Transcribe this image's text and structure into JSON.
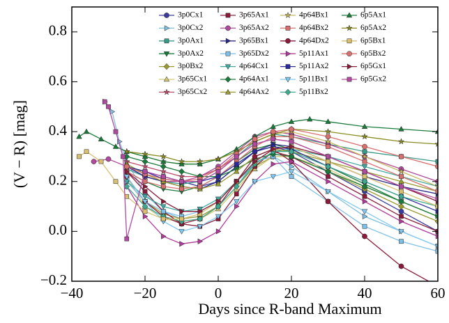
{
  "chart_data": {
    "type": "line",
    "xlabel": "Days since R-band Maximum",
    "ylabel": "(V − R) [mag]",
    "xlim": [
      -40,
      60
    ],
    "ylim": [
      -0.2,
      0.9
    ],
    "xticks": [
      {
        "value": -40,
        "label": "−40"
      },
      {
        "value": -20,
        "label": "−20"
      },
      0,
      20,
      40,
      60
    ],
    "yticks": [
      {
        "value": -0.2,
        "label": "−0.2"
      },
      {
        "value": 0.0,
        "label": "0.0"
      },
      0.2,
      0.4,
      0.6,
      0.8
    ],
    "legend": "upper right",
    "series": [
      {
        "name": "3p0Cx1",
        "color": "#3b3b9c",
        "marker": "circle",
        "x": [
          -25,
          -20,
          -15,
          -10,
          -5,
          0,
          5,
          10,
          15,
          20,
          30,
          40,
          50,
          60
        ],
        "values": [
          0.26,
          0.24,
          0.22,
          0.2,
          0.18,
          0.2,
          0.26,
          0.32,
          0.34,
          0.32,
          0.24,
          0.16,
          0.08,
          0.0
        ]
      },
      {
        "name": "3p0Cx2",
        "color": "#7fbfe0",
        "marker": "tri-right",
        "x": [
          -31,
          -29,
          -27,
          -25,
          -20,
          -15,
          -10,
          -5,
          0,
          5,
          10,
          15,
          20,
          30,
          40,
          50,
          60
        ],
        "values": [
          0.52,
          0.48,
          0.36,
          0.28,
          0.15,
          0.08,
          0.05,
          0.06,
          0.1,
          0.18,
          0.28,
          0.3,
          0.26,
          0.16,
          0.06,
          0.0,
          -0.06
        ]
      },
      {
        "name": "3p0Ax1",
        "color": "#3a9a8a",
        "marker": "square",
        "x": [
          -25,
          -20,
          -15,
          -10,
          -5,
          0,
          5,
          10,
          15,
          20,
          30,
          40,
          50,
          60
        ],
        "values": [
          0.25,
          0.22,
          0.2,
          0.19,
          0.2,
          0.24,
          0.3,
          0.36,
          0.39,
          0.38,
          0.35,
          0.32,
          0.3,
          0.28
        ]
      },
      {
        "name": "3p0Ax2",
        "color": "#1a7a3a",
        "marker": "tri-down",
        "x": [
          -25,
          -20,
          -15,
          -10,
          -5,
          0,
          5,
          10,
          15,
          20,
          30,
          40,
          50,
          60
        ],
        "values": [
          0.24,
          0.2,
          0.17,
          0.16,
          0.18,
          0.22,
          0.28,
          0.33,
          0.35,
          0.33,
          0.26,
          0.19,
          0.12,
          0.06
        ]
      },
      {
        "name": "3p0Bx2",
        "color": "#9a9a30",
        "marker": "diamond",
        "x": [
          -25,
          -20,
          -15,
          -10,
          -5,
          0,
          5,
          10,
          15,
          20,
          30,
          40,
          50,
          60
        ],
        "values": [
          0.2,
          0.12,
          0.07,
          0.05,
          0.06,
          0.1,
          0.18,
          0.26,
          0.3,
          0.3,
          0.24,
          0.17,
          0.1,
          0.04
        ]
      },
      {
        "name": "3p65Cx1",
        "color": "#d4c878",
        "marker": "tri-up",
        "x": [
          -25,
          -20,
          -15,
          -10,
          -5,
          0,
          5,
          10,
          15,
          20,
          30,
          40,
          50,
          60
        ],
        "values": [
          0.22,
          0.1,
          0.05,
          0.04,
          0.05,
          0.09,
          0.17,
          0.25,
          0.3,
          0.3,
          0.25,
          0.18,
          0.12,
          0.06
        ]
      },
      {
        "name": "3p65Cx2",
        "color": "#c04a6a",
        "marker": "star",
        "x": [
          -25,
          -20,
          -15,
          -10,
          -5,
          0,
          5,
          10,
          15,
          20,
          30,
          40,
          50,
          60
        ],
        "values": [
          0.28,
          0.26,
          0.24,
          0.22,
          0.22,
          0.25,
          0.3,
          0.35,
          0.37,
          0.36,
          0.3,
          0.24,
          0.18,
          0.12
        ]
      },
      {
        "name": "3p65Ax1",
        "color": "#8a1a3a",
        "marker": "square",
        "x": [
          -25,
          -20,
          -15,
          -10,
          -5,
          0,
          5,
          10,
          15,
          20,
          30,
          40,
          50,
          60
        ],
        "values": [
          0.24,
          0.16,
          0.08,
          0.03,
          0.02,
          0.05,
          0.15,
          0.26,
          0.32,
          0.3,
          0.22,
          0.14,
          0.06,
          0.0
        ]
      },
      {
        "name": "3p65Ax2",
        "color": "#b04a9a",
        "marker": "circle",
        "x": [
          -34,
          -30,
          -25,
          -20,
          -15,
          -10,
          -5,
          0,
          5,
          10,
          15,
          20,
          30,
          40,
          50,
          60
        ],
        "values": [
          0.28,
          0.29,
          0.26,
          0.22,
          0.2,
          0.2,
          0.22,
          0.26,
          0.32,
          0.38,
          0.4,
          0.39,
          0.35,
          0.3,
          0.25,
          0.2
        ]
      },
      {
        "name": "3p65Bx1",
        "color": "#2a2a8a",
        "marker": "tri-right",
        "x": [
          -25,
          -20,
          -15,
          -10,
          -5,
          0,
          5,
          10,
          15,
          20,
          30,
          40,
          50,
          60
        ],
        "values": [
          0.26,
          0.22,
          0.2,
          0.18,
          0.17,
          0.2,
          0.26,
          0.32,
          0.35,
          0.34,
          0.28,
          0.22,
          0.18,
          0.15
        ]
      },
      {
        "name": "3p65Dx2",
        "color": "#80c0e8",
        "marker": "square",
        "x": [
          -25,
          -20,
          -15,
          -10,
          -5,
          0,
          5,
          10,
          15,
          20,
          30,
          40,
          50,
          60
        ],
        "values": [
          0.2,
          0.12,
          0.08,
          0.06,
          0.08,
          0.12,
          0.2,
          0.28,
          0.3,
          0.22,
          0.12,
          0.02,
          -0.04,
          -0.08
        ]
      },
      {
        "name": "4p64Cx1",
        "color": "#40aaa0",
        "marker": "tri-down",
        "x": [
          -25,
          -20,
          -15,
          -10,
          -5,
          0,
          5,
          10,
          15,
          20,
          30,
          40,
          50,
          60
        ],
        "values": [
          0.2,
          0.14,
          0.1,
          0.08,
          0.09,
          0.13,
          0.2,
          0.27,
          0.32,
          0.33,
          0.3,
          0.26,
          0.22,
          0.18
        ]
      },
      {
        "name": "4p64Ax1",
        "color": "#1a7a3a",
        "marker": "diamond",
        "x": [
          -25,
          -20,
          -15,
          -10,
          -5,
          0,
          5,
          10,
          15,
          20,
          30,
          40,
          50,
          60
        ],
        "values": [
          0.3,
          0.28,
          0.26,
          0.24,
          0.22,
          0.22,
          0.25,
          0.29,
          0.31,
          0.3,
          0.24,
          0.18,
          0.12,
          0.06
        ]
      },
      {
        "name": "4p64Ax2",
        "color": "#9a9a30",
        "marker": "tri-up",
        "x": [
          -25,
          -20,
          -15,
          -10,
          -5,
          0,
          5,
          10,
          15,
          20,
          30,
          40,
          50,
          60
        ],
        "values": [
          0.27,
          0.23,
          0.2,
          0.18,
          0.17,
          0.19,
          0.24,
          0.3,
          0.33,
          0.32,
          0.28,
          0.24,
          0.2,
          0.16
        ]
      },
      {
        "name": "4p64Bx1",
        "color": "#c8b860",
        "marker": "star",
        "x": [
          -25,
          -20,
          -15,
          -10,
          -5,
          0,
          5,
          10,
          15,
          20,
          30,
          40,
          50,
          60
        ],
        "values": [
          0.32,
          0.3,
          0.28,
          0.27,
          0.27,
          0.29,
          0.32,
          0.36,
          0.39,
          0.4,
          0.36,
          0.3,
          0.24,
          0.18
        ]
      },
      {
        "name": "4p64Bx2",
        "color": "#d87070",
        "marker": "square",
        "x": [
          -25,
          -20,
          -15,
          -10,
          -5,
          0,
          5,
          10,
          15,
          20,
          30,
          40,
          50,
          60
        ],
        "values": [
          0.24,
          0.2,
          0.18,
          0.17,
          0.18,
          0.22,
          0.28,
          0.34,
          0.38,
          0.38,
          0.34,
          0.28,
          0.22,
          0.16
        ]
      },
      {
        "name": "4p64Dx2",
        "color": "#8a1a3a",
        "marker": "circle",
        "x": [
          -25,
          -20,
          -15,
          -10,
          -5,
          0,
          5,
          10,
          15,
          20,
          30,
          40,
          50,
          60
        ],
        "values": [
          0.22,
          0.12,
          0.06,
          0.03,
          0.05,
          0.1,
          0.2,
          0.3,
          0.33,
          0.28,
          0.12,
          -0.02,
          -0.14,
          -0.22
        ]
      },
      {
        "name": "5p11Ax1",
        "color": "#b03a9a",
        "marker": "tri-right",
        "x": [
          -25,
          -20,
          -15,
          -10,
          -5,
          0,
          5,
          10,
          15,
          20,
          30,
          40,
          50,
          60
        ],
        "values": [
          0.18,
          0.06,
          -0.02,
          -0.05,
          -0.04,
          0.0,
          0.1,
          0.2,
          0.27,
          0.28,
          0.2,
          0.12,
          0.04,
          -0.02
        ]
      },
      {
        "name": "5p11Ax2",
        "color": "#2a2a9a",
        "marker": "square",
        "x": [
          -25,
          -20,
          -15,
          -10,
          -5,
          0,
          5,
          10,
          15,
          20,
          30,
          40,
          50,
          60
        ],
        "values": [
          0.26,
          0.24,
          0.21,
          0.2,
          0.2,
          0.22,
          0.27,
          0.32,
          0.34,
          0.33,
          0.26,
          0.2,
          0.14,
          0.08
        ]
      },
      {
        "name": "5p11Bx1",
        "color": "#80c8f0",
        "marker": "tri-down",
        "x": [
          -25,
          -20,
          -15,
          -10,
          -5,
          0,
          5,
          10,
          15,
          20,
          30,
          40,
          50,
          60
        ],
        "values": [
          0.22,
          0.12,
          0.04,
          0.0,
          0.02,
          0.06,
          0.12,
          0.2,
          0.22,
          0.24,
          0.16,
          0.08,
          0.0,
          -0.06
        ]
      },
      {
        "name": "5p11Bx2",
        "color": "#40aa90",
        "marker": "diamond",
        "x": [
          -25,
          -20,
          -15,
          -10,
          -5,
          0,
          5,
          10,
          15,
          20,
          30,
          40,
          50,
          60
        ],
        "values": [
          0.18,
          0.1,
          0.06,
          0.04,
          0.05,
          0.1,
          0.18,
          0.27,
          0.32,
          0.32,
          0.26,
          0.2,
          0.14,
          0.1
        ]
      },
      {
        "name": "6p5Ax1",
        "color": "#1a7a3a",
        "marker": "tri-up",
        "x": [
          -38,
          -36,
          -32,
          -28,
          -25,
          -20,
          -15,
          -10,
          -5,
          0,
          5,
          10,
          15,
          20,
          25,
          30,
          40,
          50,
          60
        ],
        "values": [
          0.38,
          0.4,
          0.37,
          0.34,
          0.32,
          0.3,
          0.28,
          0.27,
          0.27,
          0.29,
          0.33,
          0.38,
          0.42,
          0.44,
          0.45,
          0.44,
          0.42,
          0.41,
          0.4
        ]
      },
      {
        "name": "6p5Ax2",
        "color": "#8a8a20",
        "marker": "star",
        "x": [
          -25,
          -20,
          -15,
          -10,
          -5,
          0,
          5,
          10,
          15,
          20,
          30,
          40,
          50,
          60
        ],
        "values": [
          0.32,
          0.31,
          0.3,
          0.28,
          0.28,
          0.29,
          0.32,
          0.36,
          0.39,
          0.41,
          0.4,
          0.38,
          0.36,
          0.35
        ]
      },
      {
        "name": "6p5Bx1",
        "color": "#d8c070",
        "marker": "square",
        "x": [
          -38,
          -36,
          -32,
          -28,
          -25,
          -20,
          -15,
          -10,
          -5,
          0,
          5,
          10,
          15,
          20,
          30,
          40,
          50,
          60
        ],
        "values": [
          0.3,
          0.32,
          0.28,
          0.2,
          0.14,
          0.08,
          0.05,
          0.05,
          0.07,
          0.12,
          0.2,
          0.28,
          0.33,
          0.34,
          0.28,
          0.22,
          0.16,
          0.1
        ]
      },
      {
        "name": "6p5Bx2",
        "color": "#d87070",
        "marker": "circle",
        "x": [
          -25,
          -20,
          -15,
          -10,
          -5,
          0,
          5,
          10,
          15,
          20,
          30,
          40,
          50,
          60
        ],
        "values": [
          0.26,
          0.23,
          0.21,
          0.2,
          0.21,
          0.25,
          0.31,
          0.37,
          0.4,
          0.41,
          0.38,
          0.34,
          0.3,
          0.26
        ]
      },
      {
        "name": "6p5Gx1",
        "color": "#8a1a3a",
        "marker": "tri-right",
        "x": [
          -25,
          -20,
          -15,
          -10,
          -5,
          0,
          5,
          10,
          15,
          20,
          30,
          40,
          50,
          60
        ],
        "values": [
          0.24,
          0.18,
          0.12,
          0.08,
          0.08,
          0.12,
          0.2,
          0.28,
          0.33,
          0.34,
          0.3,
          0.24,
          0.18,
          0.12
        ]
      },
      {
        "name": "6p5Gx2",
        "color": "#b04aa0",
        "marker": "square",
        "x": [
          -31,
          -30,
          -28,
          -26,
          -25,
          -20,
          -15,
          -10,
          -5,
          0,
          5,
          10,
          15,
          20,
          30,
          40,
          50,
          60
        ],
        "values": [
          0.52,
          0.5,
          0.4,
          0.3,
          -0.03,
          0.24,
          0.22,
          0.2,
          0.2,
          0.24,
          0.3,
          0.35,
          0.37,
          0.36,
          0.3,
          0.24,
          0.18,
          0.13
        ]
      }
    ]
  }
}
